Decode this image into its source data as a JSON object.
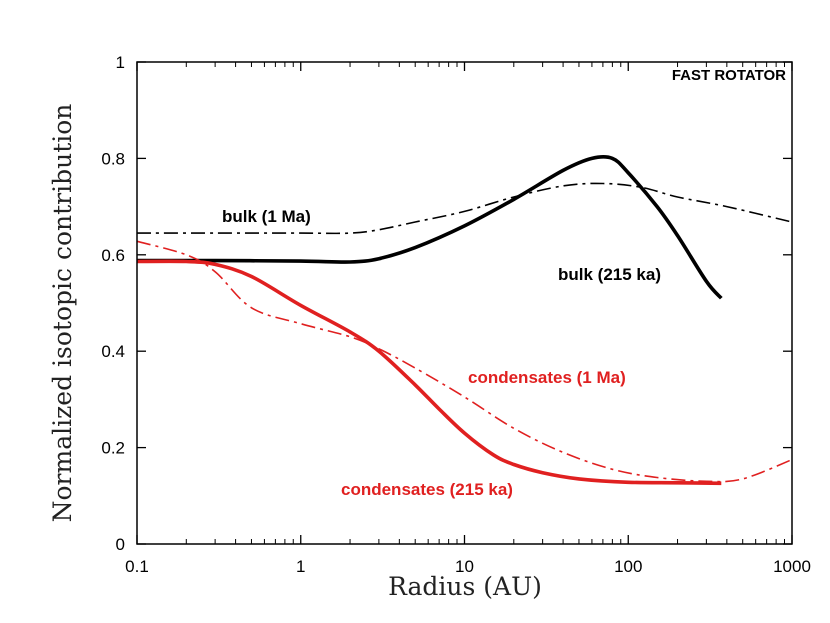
{
  "chart_data": {
    "type": "line",
    "title": "",
    "xlabel": "Radius (AU)",
    "ylabel": "Normalized isotopic contribution",
    "xscale": "log",
    "xlim": [
      0.1,
      1000
    ],
    "ylim": [
      0,
      1
    ],
    "x_ticks": [
      "0.1",
      "1",
      "10",
      "100",
      "1000"
    ],
    "y_ticks": [
      "0",
      "0.2",
      "0.4",
      "0.6",
      "0.8",
      "1"
    ],
    "panel_label": "FAST ROTATOR",
    "grid": false,
    "legend": "none",
    "series": [
      {
        "name": "bulk (1 Ma)",
        "color": "#000000",
        "style": "dash-dot",
        "x": [
          0.1,
          0.3,
          1,
          2,
          3,
          5,
          10,
          20,
          40,
          70,
          120,
          200,
          400,
          1000
        ],
        "y": [
          0.645,
          0.645,
          0.645,
          0.645,
          0.652,
          0.668,
          0.69,
          0.72,
          0.743,
          0.748,
          0.74,
          0.72,
          0.7,
          0.668
        ]
      },
      {
        "name": "bulk (215 ka)",
        "color": "#000000",
        "style": "solid",
        "x": [
          0.1,
          0.3,
          1,
          2,
          3,
          5,
          10,
          20,
          40,
          60,
          80,
          100,
          150,
          200,
          300,
          370
        ],
        "y": [
          0.588,
          0.588,
          0.587,
          0.585,
          0.592,
          0.615,
          0.66,
          0.715,
          0.775,
          0.8,
          0.8,
          0.77,
          0.7,
          0.64,
          0.545,
          0.51
        ]
      },
      {
        "name": "condensates (1 Ma)",
        "color": "#e02020",
        "style": "dash-dot",
        "x": [
          0.1,
          0.2,
          0.3,
          0.5,
          1,
          2,
          3,
          5,
          10,
          20,
          40,
          80,
          150,
          300,
          500,
          1000
        ],
        "y": [
          0.628,
          0.6,
          0.565,
          0.49,
          0.457,
          0.43,
          0.405,
          0.365,
          0.305,
          0.24,
          0.19,
          0.155,
          0.138,
          0.13,
          0.135,
          0.175
        ]
      },
      {
        "name": "condensates (215 ka)",
        "color": "#e02020",
        "style": "solid",
        "x": [
          0.1,
          0.2,
          0.3,
          0.5,
          1,
          2,
          3,
          5,
          7,
          10,
          15,
          20,
          30,
          50,
          100,
          200,
          370
        ],
        "y": [
          0.586,
          0.586,
          0.58,
          0.555,
          0.495,
          0.44,
          0.4,
          0.33,
          0.28,
          0.23,
          0.185,
          0.165,
          0.148,
          0.135,
          0.128,
          0.127,
          0.126
        ]
      }
    ],
    "annotations": [
      {
        "text": "bulk (1 Ma)",
        "color": "#000000"
      },
      {
        "text": "bulk (215 ka)",
        "color": "#000000"
      },
      {
        "text": "condensates (1 Ma)",
        "color": "#e02020"
      },
      {
        "text": "condensates (215 ka)",
        "color": "#e02020"
      }
    ]
  }
}
